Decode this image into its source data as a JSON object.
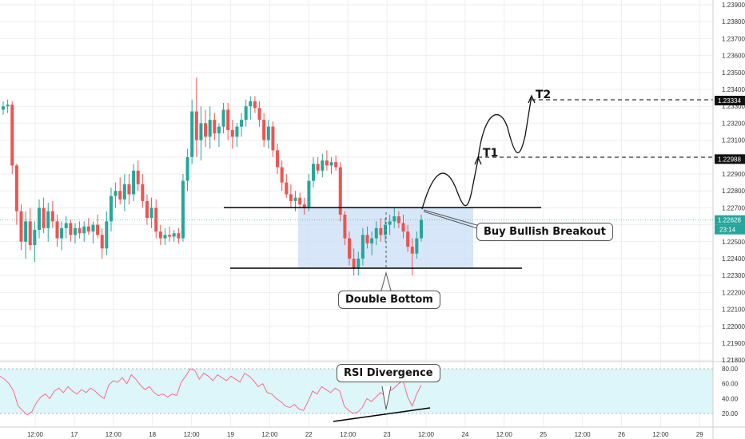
{
  "colors": {
    "up": "#26a69a",
    "down": "#ef5350",
    "grid": "#eeeeee",
    "box_fill": "#c9ddf5",
    "rsi_band_fill": "#dcf6fa",
    "rsi_line": "#ff6a87",
    "projection": "#111111",
    "price_label_bg": "#111111",
    "current_price_bg": "#26a69a"
  },
  "chart_data": [
    {
      "type": "candlestick",
      "instrument_hint": "price chart",
      "price_axis": {
        "ticks": [
          "1.23900",
          "1.23800",
          "1.23700",
          "1.23600",
          "1.23500",
          "1.23400",
          "1.23300",
          "1.23200",
          "1.23100",
          "1.23000",
          "1.22900",
          "1.22800",
          "1.22700",
          "1.22600",
          "1.22500",
          "1.22400",
          "1.22300",
          "1.22200",
          "1.22100",
          "1.22000",
          "1.21900",
          "1.21800"
        ],
        "highlight_labels": [
          "1.23334",
          "1.22988"
        ],
        "current_price": "1.22628",
        "countdown": "23:14",
        "ylim": [
          1.2176,
          1.2398
        ]
      },
      "time_axis": {
        "labels": [
          "12:00",
          "17",
          "12:00",
          "18",
          "12:00",
          "19",
          "12:00",
          "22",
          "12:00",
          "23",
          "12:00",
          "24",
          "12:00",
          "25",
          "12:00",
          "26",
          "12:00",
          "29"
        ]
      },
      "levels": {
        "resistance": 1.2269,
        "support": 1.2232,
        "t1": 1.22988,
        "t2": 1.23334
      },
      "candles": [
        {
          "o": 1.2328,
          "h": 1.2333,
          "l": 1.2325,
          "c": 1.233
        },
        {
          "o": 1.233,
          "h": 1.2334,
          "l": 1.2326,
          "c": 1.2331
        },
        {
          "o": 1.2331,
          "h": 1.2333,
          "l": 1.229,
          "c": 1.2295
        },
        {
          "o": 1.2295,
          "h": 1.2296,
          "l": 1.226,
          "c": 1.2268
        },
        {
          "o": 1.2268,
          "h": 1.2272,
          "l": 1.2245,
          "c": 1.225
        },
        {
          "o": 1.225,
          "h": 1.2268,
          "l": 1.224,
          "c": 1.2262
        },
        {
          "o": 1.2262,
          "h": 1.227,
          "l": 1.2245,
          "c": 1.2248
        },
        {
          "o": 1.2248,
          "h": 1.2262,
          "l": 1.2238,
          "c": 1.2257
        },
        {
          "o": 1.2257,
          "h": 1.2275,
          "l": 1.2252,
          "c": 1.227
        },
        {
          "o": 1.227,
          "h": 1.2276,
          "l": 1.2255,
          "c": 1.2258
        },
        {
          "o": 1.2258,
          "h": 1.2273,
          "l": 1.225,
          "c": 1.2268
        },
        {
          "o": 1.2268,
          "h": 1.2274,
          "l": 1.2258,
          "c": 1.2262
        },
        {
          "o": 1.2262,
          "h": 1.2266,
          "l": 1.2247,
          "c": 1.2252
        },
        {
          "o": 1.2252,
          "h": 1.2262,
          "l": 1.2245,
          "c": 1.2258
        },
        {
          "o": 1.2258,
          "h": 1.2265,
          "l": 1.2252,
          "c": 1.2261
        },
        {
          "o": 1.2261,
          "h": 1.2263,
          "l": 1.225,
          "c": 1.2254
        },
        {
          "o": 1.2254,
          "h": 1.2261,
          "l": 1.2249,
          "c": 1.2258
        },
        {
          "o": 1.2258,
          "h": 1.2262,
          "l": 1.2252,
          "c": 1.2255
        },
        {
          "o": 1.2255,
          "h": 1.2262,
          "l": 1.225,
          "c": 1.2259
        },
        {
          "o": 1.2259,
          "h": 1.2264,
          "l": 1.2254,
          "c": 1.2256
        },
        {
          "o": 1.2256,
          "h": 1.2262,
          "l": 1.2249,
          "c": 1.226
        },
        {
          "o": 1.226,
          "h": 1.2266,
          "l": 1.2252,
          "c": 1.2254
        },
        {
          "o": 1.2254,
          "h": 1.2258,
          "l": 1.224,
          "c": 1.2246
        },
        {
          "o": 1.2246,
          "h": 1.2268,
          "l": 1.2242,
          "c": 1.2262
        },
        {
          "o": 1.2262,
          "h": 1.2282,
          "l": 1.2256,
          "c": 1.2277
        },
        {
          "o": 1.2277,
          "h": 1.2285,
          "l": 1.227,
          "c": 1.228
        },
        {
          "o": 1.228,
          "h": 1.2288,
          "l": 1.2272,
          "c": 1.2275
        },
        {
          "o": 1.2275,
          "h": 1.229,
          "l": 1.2268,
          "c": 1.2284
        },
        {
          "o": 1.2284,
          "h": 1.229,
          "l": 1.2272,
          "c": 1.2278
        },
        {
          "o": 1.2278,
          "h": 1.2296,
          "l": 1.2274,
          "c": 1.2292
        },
        {
          "o": 1.2292,
          "h": 1.2298,
          "l": 1.228,
          "c": 1.2284
        },
        {
          "o": 1.2284,
          "h": 1.229,
          "l": 1.227,
          "c": 1.2274
        },
        {
          "o": 1.2274,
          "h": 1.2278,
          "l": 1.226,
          "c": 1.2264
        },
        {
          "o": 1.2264,
          "h": 1.2276,
          "l": 1.2258,
          "c": 1.227
        },
        {
          "o": 1.227,
          "h": 1.2275,
          "l": 1.2252,
          "c": 1.2256
        },
        {
          "o": 1.2256,
          "h": 1.226,
          "l": 1.2248,
          "c": 1.2252
        },
        {
          "o": 1.2252,
          "h": 1.2258,
          "l": 1.2248,
          "c": 1.2254
        },
        {
          "o": 1.2254,
          "h": 1.2259,
          "l": 1.225,
          "c": 1.2253
        },
        {
          "o": 1.2253,
          "h": 1.2257,
          "l": 1.225,
          "c": 1.2255
        },
        {
          "o": 1.2255,
          "h": 1.2258,
          "l": 1.2249,
          "c": 1.2252
        },
        {
          "o": 1.2252,
          "h": 1.229,
          "l": 1.225,
          "c": 1.2286
        },
        {
          "o": 1.2286,
          "h": 1.2305,
          "l": 1.228,
          "c": 1.23
        },
        {
          "o": 1.23,
          "h": 1.2334,
          "l": 1.2296,
          "c": 1.2327
        },
        {
          "o": 1.2327,
          "h": 1.2347,
          "l": 1.23,
          "c": 1.231
        },
        {
          "o": 1.231,
          "h": 1.233,
          "l": 1.2298,
          "c": 1.232
        },
        {
          "o": 1.232,
          "h": 1.2328,
          "l": 1.2306,
          "c": 1.2312
        },
        {
          "o": 1.2312,
          "h": 1.233,
          "l": 1.2305,
          "c": 1.2322
        },
        {
          "o": 1.2322,
          "h": 1.2326,
          "l": 1.231,
          "c": 1.2314
        },
        {
          "o": 1.2314,
          "h": 1.232,
          "l": 1.2306,
          "c": 1.2318
        },
        {
          "o": 1.2318,
          "h": 1.2332,
          "l": 1.2314,
          "c": 1.2328
        },
        {
          "o": 1.2328,
          "h": 1.2332,
          "l": 1.231,
          "c": 1.2316
        },
        {
          "o": 1.2316,
          "h": 1.2322,
          "l": 1.2305,
          "c": 1.2312
        },
        {
          "o": 1.2312,
          "h": 1.232,
          "l": 1.2306,
          "c": 1.2318
        },
        {
          "o": 1.2318,
          "h": 1.2326,
          "l": 1.2312,
          "c": 1.2322
        },
        {
          "o": 1.2322,
          "h": 1.2334,
          "l": 1.2318,
          "c": 1.233
        },
        {
          "o": 1.233,
          "h": 1.2336,
          "l": 1.2322,
          "c": 1.2333
        },
        {
          "o": 1.2333,
          "h": 1.2336,
          "l": 1.2326,
          "c": 1.2329
        },
        {
          "o": 1.2329,
          "h": 1.2333,
          "l": 1.2318,
          "c": 1.2322
        },
        {
          "o": 1.2322,
          "h": 1.2326,
          "l": 1.2306,
          "c": 1.231
        },
        {
          "o": 1.231,
          "h": 1.2322,
          "l": 1.2305,
          "c": 1.2318
        },
        {
          "o": 1.2318,
          "h": 1.2321,
          "l": 1.23,
          "c": 1.2304
        },
        {
          "o": 1.2304,
          "h": 1.2308,
          "l": 1.229,
          "c": 1.2294
        },
        {
          "o": 1.2294,
          "h": 1.2298,
          "l": 1.228,
          "c": 1.2285
        },
        {
          "o": 1.2285,
          "h": 1.229,
          "l": 1.2276,
          "c": 1.2278
        },
        {
          "o": 1.2278,
          "h": 1.2284,
          "l": 1.227,
          "c": 1.2274
        },
        {
          "o": 1.2274,
          "h": 1.228,
          "l": 1.2268,
          "c": 1.2276
        },
        {
          "o": 1.2276,
          "h": 1.2279,
          "l": 1.227,
          "c": 1.2272
        },
        {
          "o": 1.2272,
          "h": 1.2276,
          "l": 1.2266,
          "c": 1.227
        },
        {
          "o": 1.227,
          "h": 1.229,
          "l": 1.2268,
          "c": 1.2286
        },
        {
          "o": 1.2286,
          "h": 1.23,
          "l": 1.2282,
          "c": 1.2296
        },
        {
          "o": 1.2296,
          "h": 1.23,
          "l": 1.229,
          "c": 1.2292
        },
        {
          "o": 1.2292,
          "h": 1.2302,
          "l": 1.2288,
          "c": 1.2298
        },
        {
          "o": 1.2298,
          "h": 1.2304,
          "l": 1.2292,
          "c": 1.2295
        },
        {
          "o": 1.2295,
          "h": 1.23,
          "l": 1.229,
          "c": 1.2297
        },
        {
          "o": 1.2297,
          "h": 1.2301,
          "l": 1.2292,
          "c": 1.2294
        },
        {
          "o": 1.2294,
          "h": 1.2297,
          "l": 1.2262,
          "c": 1.2266
        },
        {
          "o": 1.2266,
          "h": 1.2268,
          "l": 1.2248,
          "c": 1.2252
        },
        {
          "o": 1.2252,
          "h": 1.2256,
          "l": 1.2236,
          "c": 1.224
        },
        {
          "o": 1.224,
          "h": 1.2246,
          "l": 1.223,
          "c": 1.2234
        },
        {
          "o": 1.2234,
          "h": 1.2244,
          "l": 1.223,
          "c": 1.224
        },
        {
          "o": 1.224,
          "h": 1.2258,
          "l": 1.2236,
          "c": 1.2254
        },
        {
          "o": 1.2254,
          "h": 1.2259,
          "l": 1.2246,
          "c": 1.2249
        },
        {
          "o": 1.2249,
          "h": 1.2256,
          "l": 1.2242,
          "c": 1.2252
        },
        {
          "o": 1.2252,
          "h": 1.2262,
          "l": 1.2248,
          "c": 1.2258
        },
        {
          "o": 1.2258,
          "h": 1.2264,
          "l": 1.225,
          "c": 1.2254
        },
        {
          "o": 1.2254,
          "h": 1.2264,
          "l": 1.225,
          "c": 1.226
        },
        {
          "o": 1.226,
          "h": 1.2266,
          "l": 1.2254,
          "c": 1.2262
        },
        {
          "o": 1.2262,
          "h": 1.227,
          "l": 1.2258,
          "c": 1.2265
        },
        {
          "o": 1.2265,
          "h": 1.2268,
          "l": 1.2258,
          "c": 1.2261
        },
        {
          "o": 1.2261,
          "h": 1.2266,
          "l": 1.2252,
          "c": 1.2256
        },
        {
          "o": 1.2256,
          "h": 1.226,
          "l": 1.2244,
          "c": 1.2247
        },
        {
          "o": 1.2247,
          "h": 1.2252,
          "l": 1.223,
          "c": 1.2243
        },
        {
          "o": 1.2243,
          "h": 1.2256,
          "l": 1.224,
          "c": 1.2252
        },
        {
          "o": 1.2252,
          "h": 1.2266,
          "l": 1.225,
          "c": 1.2263
        }
      ]
    },
    {
      "type": "line",
      "name": "RSI",
      "y_ticks": [
        "80.00",
        "60.00",
        "40.00",
        "20.00"
      ],
      "band": [
        20,
        80
      ],
      "ylim": [
        10,
        90
      ],
      "values": [
        70,
        66,
        60,
        50,
        30,
        24,
        18,
        22,
        34,
        42,
        46,
        40,
        50,
        54,
        48,
        56,
        50,
        46,
        52,
        48,
        54,
        50,
        44,
        40,
        58,
        64,
        62,
        68,
        60,
        72,
        66,
        58,
        52,
        56,
        48,
        44,
        46,
        42,
        46,
        44,
        62,
        70,
        80,
        78,
        66,
        74,
        70,
        64,
        72,
        68,
        64,
        70,
        66,
        62,
        74,
        70,
        64,
        56,
        60,
        48,
        46,
        40,
        36,
        30,
        28,
        32,
        26,
        24,
        36,
        50,
        46,
        56,
        52,
        48,
        54,
        50,
        30,
        24,
        20,
        22,
        28,
        40,
        36,
        42,
        48,
        44,
        50,
        54,
        60,
        64,
        42,
        30,
        46,
        58
      ]
    }
  ],
  "annotations": {
    "t1": "T1",
    "t2": "T2",
    "double_bottom": "Double Bottom",
    "breakout": "Buy Bullish Breakout",
    "rsi_divergence": "RSI Divergence"
  }
}
